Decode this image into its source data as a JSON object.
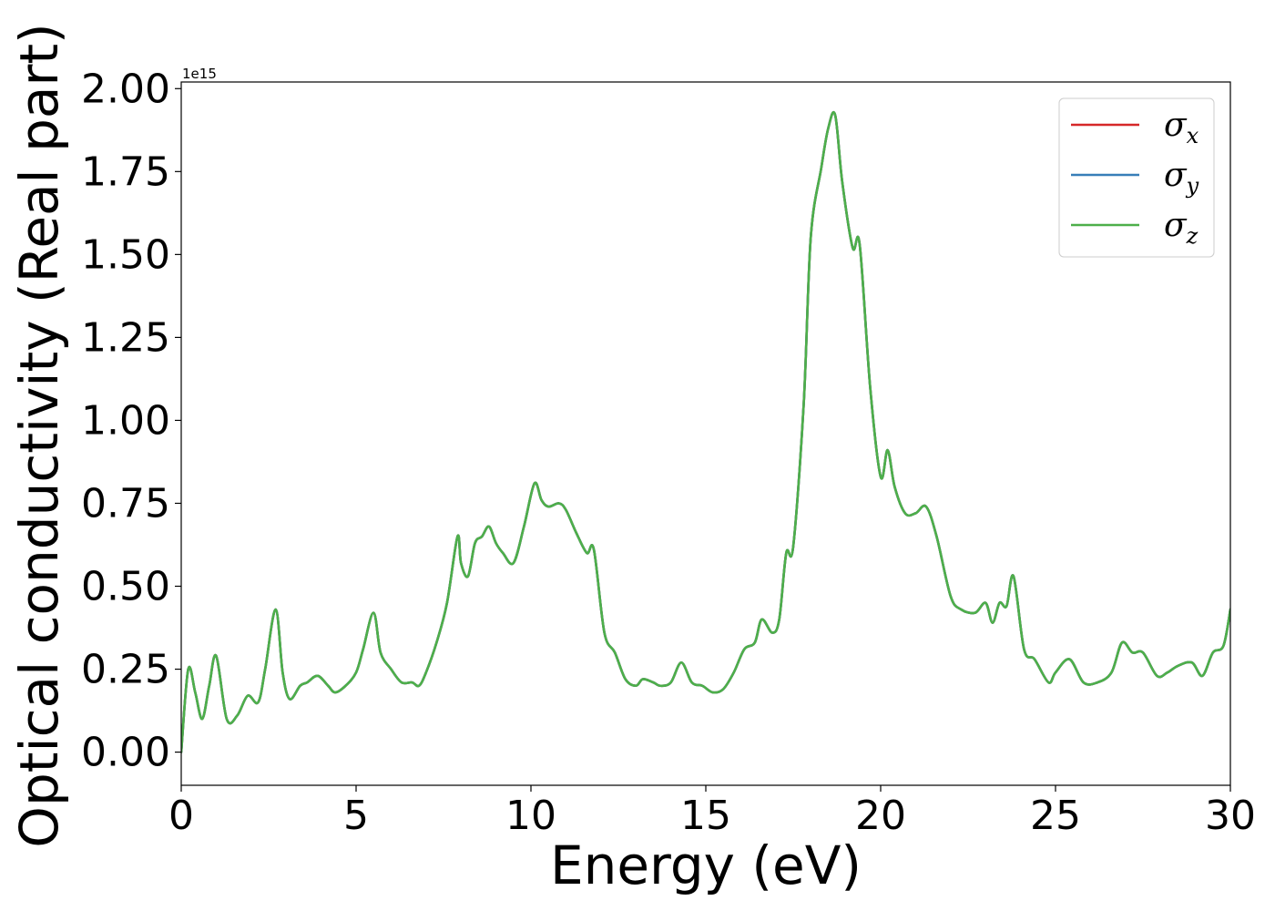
{
  "chart_data": {
    "type": "line",
    "xlabel": "Energy (eV)",
    "ylabel": "Optical conductivity (Real part)",
    "y_offset_text": "1e15",
    "y_scale": 1000000000000000.0,
    "xlim": [
      0,
      30
    ],
    "ylim": [
      -0.1,
      2.02
    ],
    "xticks": [
      0,
      5,
      10,
      15,
      20,
      25,
      30
    ],
    "xtick_labels": [
      "0",
      "5",
      "10",
      "15",
      "20",
      "25",
      "30"
    ],
    "yticks": [
      0.0,
      0.25,
      0.5,
      0.75,
      1.0,
      1.25,
      1.5,
      1.75,
      2.0
    ],
    "ytick_labels": [
      "0.00",
      "0.25",
      "0.50",
      "0.75",
      "1.00",
      "1.25",
      "1.50",
      "1.75",
      "2.00"
    ],
    "grid": false,
    "legend_position": "top-right",
    "x": [
      0,
      0.2,
      0.4,
      0.6,
      0.8,
      1.0,
      1.3,
      1.6,
      1.9,
      2.2,
      2.4,
      2.7,
      2.9,
      3.1,
      3.4,
      3.6,
      3.9,
      4.2,
      4.4,
      4.7,
      5.0,
      5.2,
      5.5,
      5.7,
      6.0,
      6.3,
      6.6,
      6.8,
      7.0,
      7.3,
      7.6,
      7.9,
      8.0,
      8.2,
      8.4,
      8.6,
      8.8,
      9.0,
      9.2,
      9.5,
      9.8,
      10.1,
      10.3,
      10.5,
      10.8,
      11.0,
      11.3,
      11.6,
      11.8,
      12.1,
      12.4,
      12.7,
      13.0,
      13.2,
      13.5,
      13.7,
      14.0,
      14.3,
      14.6,
      14.9,
      15.2,
      15.5,
      15.8,
      16.1,
      16.4,
      16.6,
      16.9,
      17.1,
      17.3,
      17.5,
      17.8,
      18.0,
      18.3,
      18.5,
      18.7,
      18.9,
      19.2,
      19.4,
      19.7,
      20.0,
      20.2,
      20.4,
      20.7,
      21.0,
      21.3,
      21.6,
      22.0,
      22.3,
      22.7,
      23.0,
      23.2,
      23.4,
      23.6,
      23.8,
      24.1,
      24.4,
      24.8,
      25.0,
      25.4,
      25.8,
      26.2,
      26.6,
      26.9,
      27.2,
      27.5,
      27.9,
      28.2,
      28.5,
      28.9,
      29.2,
      29.5,
      29.8,
      30.0
    ],
    "series": [
      {
        "name": "σ_x",
        "label_main": "σ",
        "label_sub": "x",
        "color": "#d62728",
        "values": [
          0.0,
          0.25,
          0.18,
          0.1,
          0.2,
          0.29,
          0.1,
          0.11,
          0.17,
          0.15,
          0.25,
          0.43,
          0.24,
          0.16,
          0.2,
          0.21,
          0.23,
          0.2,
          0.18,
          0.2,
          0.24,
          0.31,
          0.42,
          0.3,
          0.25,
          0.21,
          0.21,
          0.2,
          0.24,
          0.33,
          0.45,
          0.65,
          0.57,
          0.53,
          0.63,
          0.65,
          0.68,
          0.63,
          0.6,
          0.57,
          0.68,
          0.81,
          0.76,
          0.74,
          0.75,
          0.73,
          0.66,
          0.6,
          0.61,
          0.36,
          0.3,
          0.22,
          0.2,
          0.22,
          0.21,
          0.2,
          0.21,
          0.27,
          0.21,
          0.2,
          0.18,
          0.19,
          0.24,
          0.31,
          0.33,
          0.4,
          0.36,
          0.4,
          0.6,
          0.62,
          1.05,
          1.55,
          1.76,
          1.88,
          1.92,
          1.72,
          1.52,
          1.53,
          1.1,
          0.83,
          0.91,
          0.8,
          0.72,
          0.72,
          0.74,
          0.65,
          0.47,
          0.43,
          0.42,
          0.45,
          0.39,
          0.45,
          0.44,
          0.53,
          0.31,
          0.28,
          0.21,
          0.24,
          0.28,
          0.21,
          0.21,
          0.24,
          0.33,
          0.3,
          0.3,
          0.23,
          0.24,
          0.26,
          0.27,
          0.23,
          0.3,
          0.32,
          0.43
        ]
      },
      {
        "name": "σ_y",
        "label_main": "σ",
        "label_sub": "y",
        "color": "#377eb8",
        "values": [
          0.0,
          0.25,
          0.18,
          0.1,
          0.2,
          0.29,
          0.1,
          0.11,
          0.17,
          0.15,
          0.25,
          0.43,
          0.24,
          0.16,
          0.2,
          0.21,
          0.23,
          0.2,
          0.18,
          0.2,
          0.24,
          0.31,
          0.42,
          0.3,
          0.25,
          0.21,
          0.21,
          0.2,
          0.24,
          0.33,
          0.45,
          0.65,
          0.57,
          0.53,
          0.63,
          0.65,
          0.68,
          0.63,
          0.6,
          0.57,
          0.68,
          0.81,
          0.76,
          0.74,
          0.75,
          0.73,
          0.66,
          0.6,
          0.61,
          0.36,
          0.3,
          0.22,
          0.2,
          0.22,
          0.21,
          0.2,
          0.21,
          0.27,
          0.21,
          0.2,
          0.18,
          0.19,
          0.24,
          0.31,
          0.33,
          0.4,
          0.36,
          0.4,
          0.6,
          0.62,
          1.05,
          1.55,
          1.76,
          1.88,
          1.92,
          1.72,
          1.52,
          1.53,
          1.1,
          0.83,
          0.91,
          0.8,
          0.72,
          0.72,
          0.74,
          0.65,
          0.47,
          0.43,
          0.42,
          0.45,
          0.39,
          0.45,
          0.44,
          0.53,
          0.31,
          0.28,
          0.21,
          0.24,
          0.28,
          0.21,
          0.21,
          0.24,
          0.33,
          0.3,
          0.3,
          0.23,
          0.24,
          0.26,
          0.27,
          0.23,
          0.3,
          0.32,
          0.43
        ]
      },
      {
        "name": "σ_z",
        "label_main": "σ",
        "label_sub": "z",
        "color": "#4daf4a",
        "values": [
          0.0,
          0.25,
          0.18,
          0.1,
          0.2,
          0.29,
          0.1,
          0.11,
          0.17,
          0.15,
          0.25,
          0.43,
          0.24,
          0.16,
          0.2,
          0.21,
          0.23,
          0.2,
          0.18,
          0.2,
          0.24,
          0.31,
          0.42,
          0.3,
          0.25,
          0.21,
          0.21,
          0.2,
          0.24,
          0.33,
          0.45,
          0.65,
          0.57,
          0.53,
          0.63,
          0.65,
          0.68,
          0.63,
          0.6,
          0.57,
          0.68,
          0.81,
          0.76,
          0.74,
          0.75,
          0.73,
          0.66,
          0.6,
          0.61,
          0.36,
          0.3,
          0.22,
          0.2,
          0.22,
          0.21,
          0.2,
          0.21,
          0.27,
          0.21,
          0.2,
          0.18,
          0.19,
          0.24,
          0.31,
          0.33,
          0.4,
          0.36,
          0.4,
          0.6,
          0.62,
          1.05,
          1.55,
          1.76,
          1.88,
          1.92,
          1.72,
          1.52,
          1.53,
          1.1,
          0.83,
          0.91,
          0.8,
          0.72,
          0.72,
          0.74,
          0.65,
          0.47,
          0.43,
          0.42,
          0.45,
          0.39,
          0.45,
          0.44,
          0.53,
          0.31,
          0.28,
          0.21,
          0.24,
          0.28,
          0.21,
          0.21,
          0.24,
          0.33,
          0.3,
          0.3,
          0.23,
          0.24,
          0.26,
          0.27,
          0.23,
          0.3,
          0.32,
          0.43
        ]
      }
    ]
  }
}
